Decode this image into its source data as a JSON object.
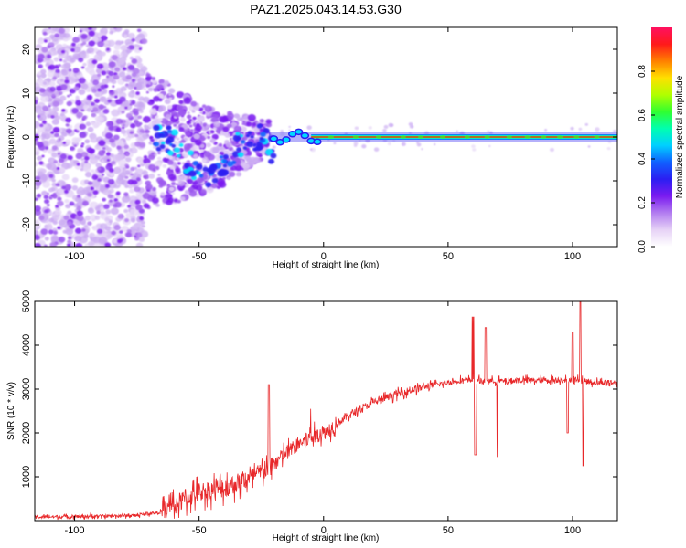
{
  "figure": {
    "title": "PAZ1.2025.043.14.53.G30"
  },
  "chart_data": [
    {
      "type": "heatmap",
      "xlabel": "Height of straight line (km)",
      "ylabel": "Frequency (Hz)",
      "xlim": [
        -116,
        118
      ],
      "ylim": [
        -25,
        25
      ],
      "xticks": [
        -100,
        -50,
        0,
        50,
        100
      ],
      "yticks": [
        -20,
        -10,
        0,
        10,
        20
      ],
      "colorbar": {
        "label": "Normalized spectral amplitude",
        "range": [
          0,
          1
        ],
        "ticks": [
          0.0,
          0.2,
          0.4,
          0.6,
          0.8
        ],
        "colors": [
          "#ffffff",
          "#e6d2f6",
          "#b27cf0",
          "#7a1bf0",
          "#2b1ef2",
          "#1060ff",
          "#00d0ff",
          "#00ffb0",
          "#30ff30",
          "#b0ff00",
          "#ffe000",
          "#ff8000",
          "#ff1a1a",
          "#ff1060"
        ]
      },
      "line_frequency_hz": 0,
      "noise_region_km": [
        -116,
        -72
      ]
    },
    {
      "type": "line",
      "xlabel": "Height of straight line (km)",
      "ylabel": "SNR (10 * v/v)",
      "xlim": [
        -116,
        118
      ],
      "ylim": [
        0,
        5000
      ],
      "xticks": [
        -100,
        -50,
        0,
        50,
        100
      ],
      "yticks": [
        1000,
        2000,
        3000,
        4000,
        5000
      ],
      "color": "#e8282a",
      "trend": {
        "x": [
          -116,
          -90,
          -75,
          -65,
          -60,
          -55,
          -50,
          -45,
          -40,
          -35,
          -30,
          -25,
          -20,
          -15,
          -10,
          -5,
          0,
          5,
          10,
          15,
          20,
          25,
          30,
          40,
          50,
          55,
          60,
          70,
          80,
          90,
          100,
          110,
          118
        ],
        "y": [
          80,
          100,
          120,
          200,
          350,
          500,
          650,
          700,
          750,
          850,
          950,
          1100,
          1300,
          1550,
          1750,
          1900,
          2000,
          2200,
          2400,
          2550,
          2700,
          2800,
          2900,
          3050,
          3150,
          3200,
          3200,
          3180,
          3200,
          3200,
          3220,
          3150,
          3150
        ]
      },
      "spikes": [
        {
          "x": -22,
          "y": 3100
        },
        {
          "x": -5,
          "y": 2550
        },
        {
          "x": 60,
          "y": 4650
        },
        {
          "x": 61,
          "y": 1500
        },
        {
          "x": 65,
          "y": 4400
        },
        {
          "x": 70,
          "y": 1450
        },
        {
          "x": 103,
          "y": 5000
        },
        {
          "x": 104,
          "y": 1250
        },
        {
          "x": 100,
          "y": 4300
        },
        {
          "x": 98,
          "y": 2000
        }
      ]
    }
  ]
}
